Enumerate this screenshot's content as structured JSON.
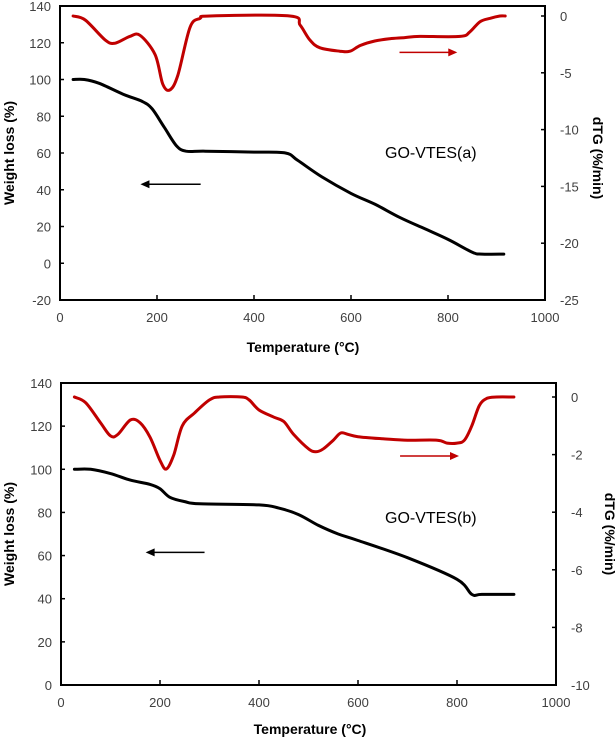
{
  "chart_data": [
    {
      "type": "line",
      "title": "",
      "annotation": "GO-VTES(a)",
      "xlabel": "Temperature (°C)",
      "ylabel": "Weight loss (%)",
      "y2label": "dTG (%/min)",
      "xlim": [
        0,
        1000
      ],
      "ylim": [
        -20,
        140
      ],
      "y2lim": [
        -25,
        0
      ],
      "xticks": [
        0,
        200,
        400,
        600,
        800,
        1000
      ],
      "yticks": [
        -20,
        0,
        20,
        40,
        60,
        80,
        100,
        120,
        140
      ],
      "y2ticks": [
        -25,
        -20,
        -15,
        -10,
        -5,
        0
      ],
      "grid": false,
      "series": [
        {
          "name": "Weight loss",
          "axis": "left",
          "color": "#000000",
          "x": [
            27,
            50,
            80,
            130,
            170,
            190,
            215,
            240,
            260,
            300,
            400,
            465,
            490,
            540,
            600,
            650,
            700,
            750,
            800,
            850,
            870,
            915
          ],
          "y": [
            100,
            100,
            98,
            92,
            88,
            84,
            74,
            64,
            61,
            61,
            60.5,
            60,
            56,
            47,
            38,
            32,
            25,
            19,
            13,
            6,
            5,
            5
          ]
        },
        {
          "name": "dTG",
          "axis": "right",
          "color": "#c00000",
          "x": [
            27,
            52,
            93,
            113,
            144,
            165,
            196,
            212,
            227,
            243,
            268,
            289,
            309,
            474,
            495,
            515,
            536,
            577,
            598,
            619,
            649,
            680,
            711,
            742,
            825,
            845,
            866,
            887,
            907,
            918
          ],
          "y": [
            0,
            -0.35,
            -2.1,
            -2.4,
            -1.8,
            -1.7,
            -3.4,
            -6.0,
            -6.5,
            -5.2,
            -1.0,
            -0.2,
            0,
            0,
            -0.8,
            -2.1,
            -2.8,
            -3.1,
            -3.1,
            -2.6,
            -2.2,
            -2.0,
            -1.9,
            -1.8,
            -1.8,
            -1.4,
            -0.5,
            -0.2,
            0,
            0
          ]
        }
      ],
      "arrows": [
        {
          "series": "Weight loss",
          "direction": "left",
          "color": "#000000",
          "x": [
            170,
            290
          ],
          "y": 43
        },
        {
          "series": "dTG",
          "direction": "right",
          "color": "#c00000",
          "x": [
            700,
            815
          ],
          "y": -3.2
        }
      ]
    },
    {
      "type": "line",
      "title": "",
      "annotation": "GO-VTES(b)",
      "xlabel": "Temperature (°C)",
      "ylabel": "Weight loss (%)",
      "y2label": "dTG (%/min)",
      "xlim": [
        0,
        1000
      ],
      "ylim": [
        0,
        140
      ],
      "y2lim": [
        -10,
        0
      ],
      "xticks": [
        0,
        200,
        400,
        600,
        800,
        1000
      ],
      "yticks": [
        0,
        20,
        40,
        60,
        80,
        100,
        120,
        140
      ],
      "y2ticks": [
        -10,
        -8,
        -6,
        -4,
        -2,
        0
      ],
      "grid": false,
      "series": [
        {
          "name": "Weight loss",
          "axis": "left",
          "color": "#000000",
          "x": [
            27,
            60,
            100,
            140,
            180,
            200,
            220,
            250,
            280,
            400,
            440,
            480,
            520,
            560,
            600,
            700,
            800,
            830,
            850,
            915
          ],
          "y": [
            100,
            100,
            98,
            95,
            93,
            91,
            87,
            85,
            84,
            83.5,
            82,
            79,
            74,
            70,
            67,
            59,
            49,
            42,
            42,
            42
          ]
        },
        {
          "name": "dTG",
          "axis": "right",
          "color": "#c00000",
          "x": [
            27,
            50,
            80,
            100,
            115,
            140,
            160,
            180,
            200,
            213,
            228,
            245,
            270,
            300,
            320,
            365,
            380,
            400,
            430,
            450,
            470,
            500,
            515,
            530,
            550,
            565,
            580,
            600,
            650,
            700,
            760,
            780,
            800,
            815,
            830,
            845,
            860,
            880,
            915
          ],
          "y": [
            0,
            -0.2,
            -0.9,
            -1.35,
            -1.3,
            -0.8,
            -0.9,
            -1.4,
            -2.2,
            -2.5,
            -2.0,
            -1.0,
            -0.55,
            -0.1,
            0,
            0,
            -0.1,
            -0.45,
            -0.7,
            -0.85,
            -1.3,
            -1.8,
            -1.9,
            -1.8,
            -1.5,
            -1.25,
            -1.3,
            -1.38,
            -1.45,
            -1.5,
            -1.5,
            -1.6,
            -1.6,
            -1.5,
            -1.0,
            -0.3,
            -0.05,
            0,
            0
          ]
        }
      ],
      "arrows": [
        {
          "series": "Weight loss",
          "direction": "left",
          "color": "#000000",
          "x": [
            175,
            290
          ],
          "y": 61.5
        },
        {
          "series": "dTG",
          "direction": "right",
          "color": "#c00000",
          "x": [
            685,
            800
          ],
          "y": -2.05
        }
      ]
    }
  ]
}
